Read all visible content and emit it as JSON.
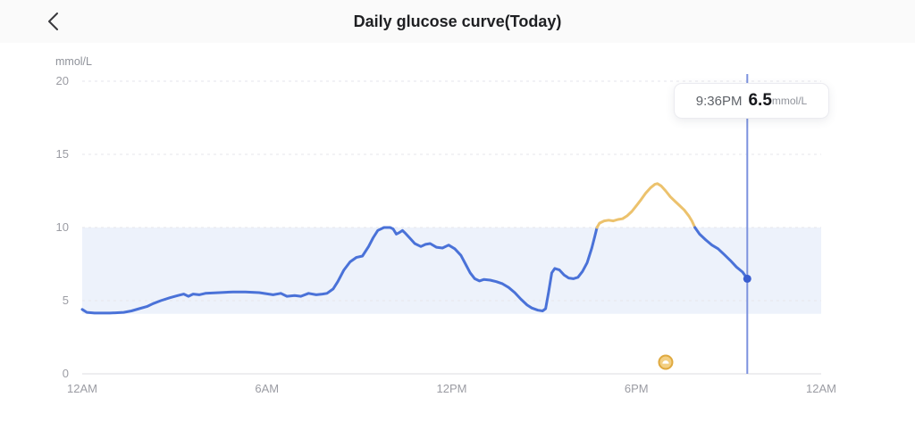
{
  "header": {
    "title": "Daily glucose curve(Today)",
    "back_icon": "chevron-left-icon"
  },
  "chart_data": {
    "type": "line",
    "title": "Daily glucose curve(Today)",
    "ylabel": "mmol/L",
    "xlabel": "",
    "ylim": [
      0,
      20
    ],
    "xlim_hours": [
      0,
      24
    ],
    "grid": "dashed-horizontal",
    "y_ticks": [
      20,
      15,
      10,
      5,
      0
    ],
    "x_ticks": [
      {
        "hour": 0,
        "label": "12AM"
      },
      {
        "hour": 6,
        "label": "6AM"
      },
      {
        "hour": 12,
        "label": "12PM"
      },
      {
        "hour": 18,
        "label": "6PM"
      },
      {
        "hour": 24,
        "label": "12AM"
      }
    ],
    "target_band": {
      "low": 4.1,
      "high": 10.0
    },
    "series": [
      {
        "name": "glucose-in-range-day",
        "color": "#4a72d8",
        "points": [
          [
            0,
            4.4
          ],
          [
            0.15,
            4.2
          ],
          [
            0.4,
            4.15
          ],
          [
            0.9,
            4.15
          ],
          [
            1.35,
            4.2
          ],
          [
            1.6,
            4.3
          ],
          [
            1.85,
            4.45
          ],
          [
            2.1,
            4.6
          ],
          [
            2.3,
            4.8
          ],
          [
            2.55,
            5.0
          ],
          [
            2.85,
            5.2
          ],
          [
            3.1,
            5.35
          ],
          [
            3.3,
            5.45
          ],
          [
            3.45,
            5.3
          ],
          [
            3.6,
            5.45
          ],
          [
            3.8,
            5.4
          ],
          [
            4.0,
            5.5
          ],
          [
            4.45,
            5.55
          ],
          [
            4.9,
            5.6
          ],
          [
            5.3,
            5.6
          ],
          [
            5.75,
            5.55
          ],
          [
            6.2,
            5.4
          ],
          [
            6.45,
            5.5
          ],
          [
            6.65,
            5.3
          ],
          [
            6.9,
            5.35
          ],
          [
            7.1,
            5.3
          ],
          [
            7.35,
            5.5
          ],
          [
            7.6,
            5.4
          ],
          [
            7.8,
            5.45
          ],
          [
            7.95,
            5.5
          ],
          [
            8.15,
            5.8
          ],
          [
            8.3,
            6.3
          ],
          [
            8.5,
            7.1
          ],
          [
            8.7,
            7.65
          ],
          [
            8.9,
            7.95
          ],
          [
            9.1,
            8.05
          ],
          [
            9.3,
            8.7
          ],
          [
            9.45,
            9.3
          ],
          [
            9.6,
            9.8
          ],
          [
            9.8,
            10.0
          ],
          [
            10.0,
            10.0
          ],
          [
            10.1,
            9.9
          ],
          [
            10.2,
            9.55
          ],
          [
            10.3,
            9.65
          ],
          [
            10.4,
            9.8
          ],
          [
            10.5,
            9.6
          ],
          [
            10.65,
            9.25
          ],
          [
            10.8,
            8.9
          ],
          [
            11.0,
            8.7
          ],
          [
            11.15,
            8.85
          ],
          [
            11.3,
            8.9
          ],
          [
            11.5,
            8.65
          ],
          [
            11.7,
            8.6
          ],
          [
            11.9,
            8.8
          ],
          [
            12.1,
            8.55
          ],
          [
            12.3,
            8.1
          ],
          [
            12.45,
            7.5
          ],
          [
            12.6,
            6.9
          ],
          [
            12.75,
            6.5
          ],
          [
            12.9,
            6.35
          ],
          [
            13.05,
            6.45
          ],
          [
            13.25,
            6.4
          ],
          [
            13.45,
            6.3
          ],
          [
            13.65,
            6.15
          ],
          [
            13.85,
            5.9
          ],
          [
            14.05,
            5.55
          ],
          [
            14.25,
            5.1
          ],
          [
            14.45,
            4.7
          ],
          [
            14.6,
            4.5
          ],
          [
            14.8,
            4.35
          ],
          [
            14.95,
            4.3
          ],
          [
            15.05,
            4.45
          ],
          [
            15.15,
            5.6
          ],
          [
            15.25,
            6.9
          ],
          [
            15.35,
            7.2
          ],
          [
            15.5,
            7.1
          ],
          [
            15.65,
            6.75
          ],
          [
            15.8,
            6.55
          ],
          [
            15.95,
            6.5
          ],
          [
            16.1,
            6.6
          ],
          [
            16.25,
            7.0
          ],
          [
            16.4,
            7.6
          ],
          [
            16.55,
            8.6
          ],
          [
            16.65,
            9.4
          ],
          [
            16.72,
            10.0
          ]
        ]
      },
      {
        "name": "glucose-above-range",
        "color": "#ecc26d",
        "points": [
          [
            16.72,
            10.0
          ],
          [
            16.8,
            10.3
          ],
          [
            16.95,
            10.45
          ],
          [
            17.1,
            10.5
          ],
          [
            17.25,
            10.45
          ],
          [
            17.4,
            10.55
          ],
          [
            17.55,
            10.6
          ],
          [
            17.7,
            10.8
          ],
          [
            17.85,
            11.1
          ],
          [
            18.0,
            11.5
          ],
          [
            18.15,
            11.9
          ],
          [
            18.3,
            12.35
          ],
          [
            18.45,
            12.7
          ],
          [
            18.6,
            12.95
          ],
          [
            18.68,
            13.0
          ],
          [
            18.8,
            12.85
          ],
          [
            18.95,
            12.5
          ],
          [
            19.1,
            12.1
          ],
          [
            19.25,
            11.8
          ],
          [
            19.4,
            11.5
          ],
          [
            19.55,
            11.2
          ],
          [
            19.7,
            10.8
          ],
          [
            19.8,
            10.45
          ],
          [
            19.9,
            10.0
          ]
        ]
      },
      {
        "name": "glucose-in-range-evening",
        "color": "#4a72d8",
        "points": [
          [
            19.9,
            10.0
          ],
          [
            20.05,
            9.55
          ],
          [
            20.25,
            9.15
          ],
          [
            20.45,
            8.8
          ],
          [
            20.65,
            8.55
          ],
          [
            20.85,
            8.15
          ],
          [
            21.05,
            7.75
          ],
          [
            21.25,
            7.3
          ],
          [
            21.45,
            6.95
          ],
          [
            21.6,
            6.5
          ]
        ]
      }
    ],
    "cursor": {
      "hour": 21.6,
      "time_label": "9:36PM",
      "value": 6.5,
      "value_label": "6.5",
      "unit_label": "mmol/L",
      "line_color": "#7c92de",
      "dot_color": "#3a5ed0"
    },
    "event_marker": {
      "hour": 18.95,
      "type": "meal",
      "ring_color": "#dfa93f",
      "fill_color": "#f3cf82"
    },
    "colors": {
      "band": "#edf2fb",
      "grid": "#e6e6eb",
      "baseline": "#dcdce2",
      "axis_text": "#9b9ca3",
      "unit_text": "#8f929a"
    },
    "legend": "none"
  }
}
